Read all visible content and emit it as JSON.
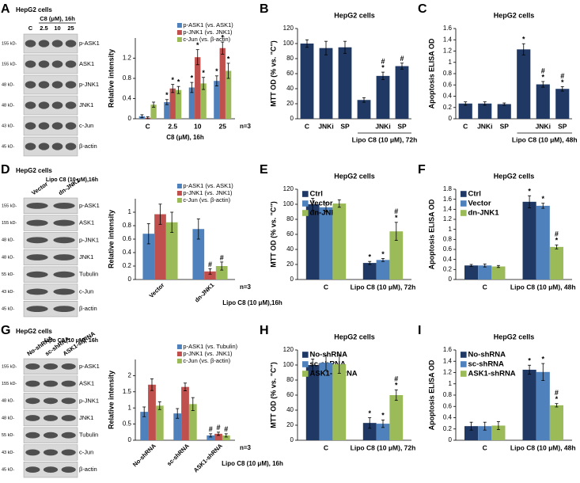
{
  "chart_data": [
    {
      "type": "bar",
      "ylabel": "Relative intensity",
      "xlabel": "C8 (μM), 16h",
      "note": "n=3",
      "categories": [
        "C",
        "2.5",
        "10",
        "25"
      ],
      "series": [
        {
          "name": "p-ASK1 (vs. ASK1)",
          "color": "#4f81bd",
          "values": [
            0.05,
            0.33,
            0.62,
            0.75
          ],
          "errors": [
            0.03,
            0.05,
            0.1,
            0.1
          ],
          "marks": [
            null,
            [
              "*"
            ],
            [
              "*"
            ],
            [
              "*"
            ]
          ]
        },
        {
          "name": "p-JNK1 (vs. JNK1)",
          "color": "#c0504d",
          "values": [
            0.02,
            0.6,
            1.22,
            1.4
          ],
          "errors": [
            0.02,
            0.08,
            0.15,
            0.12
          ],
          "marks": [
            null,
            [
              "*"
            ],
            [
              "*"
            ],
            [
              "*"
            ]
          ]
        },
        {
          "name": "c-Jun (vs. β-actin)",
          "color": "#9bbb59",
          "values": [
            0.28,
            0.57,
            0.7,
            0.95
          ],
          "errors": [
            0.05,
            0.07,
            0.12,
            0.15
          ],
          "marks": [
            null,
            [
              "*"
            ],
            [
              "*"
            ],
            [
              "*"
            ]
          ]
        }
      ],
      "ylim": [
        0,
        1.6
      ],
      "yticks": [
        0,
        0.4,
        0.8,
        1.2
      ]
    },
    {
      "type": "bar",
      "panel": "B",
      "title": "HepG2 cells",
      "ylabel": "MTT OD (% vs. \"C\")",
      "xlabel": "Lipo C8 (10 μM), 72h",
      "categories": [
        "C",
        "JNKi",
        "SP",
        null,
        "JNKi",
        "SP"
      ],
      "series": [
        {
          "color": "#1f3864",
          "values": [
            100,
            94,
            95,
            25,
            57,
            70
          ],
          "errors": [
            5,
            9,
            8,
            3,
            5,
            4
          ],
          "marks": [
            null,
            null,
            null,
            null,
            [
              "#",
              "*"
            ],
            [
              "#"
            ]
          ]
        }
      ],
      "ylim": [
        0,
        120
      ],
      "yticks": [
        0,
        20,
        40,
        60,
        80,
        100,
        120
      ]
    },
    {
      "type": "bar",
      "panel": "C",
      "title": "HepG2 cells",
      "ylabel": "Apoptosis ELISA OD",
      "xlabel": "Lipo C8 (10 μM), 48h",
      "categories": [
        "C",
        "JNKi",
        "SP",
        null,
        "JNKi",
        "SP"
      ],
      "series": [
        {
          "color": "#1f3864",
          "values": [
            0.27,
            0.27,
            0.26,
            1.23,
            0.61,
            0.53
          ],
          "errors": [
            0.03,
            0.03,
            0.02,
            0.1,
            0.05,
            0.04
          ],
          "marks": [
            null,
            null,
            null,
            [
              "*"
            ],
            [
              "#",
              "*"
            ],
            [
              "#",
              "*"
            ]
          ]
        }
      ],
      "ylim": [
        0,
        1.6
      ],
      "yticks": [
        0,
        0.2,
        0.4,
        0.6,
        0.8,
        1,
        1.2,
        1.4,
        1.6
      ]
    },
    {
      "type": "bar",
      "ylabel": "Relative intensity",
      "xlabel": "Lipo C8 (10 μM),16h",
      "note": "n=3",
      "xtick_rotation": 45,
      "categories": [
        "Vector",
        "dn-JNK1"
      ],
      "series": [
        {
          "name": "p-ASK1 (vs. ASK1)",
          "color": "#4f81bd",
          "values": [
            0.68,
            0.75
          ],
          "errors": [
            0.15,
            0.15
          ],
          "marks": [
            null,
            null
          ]
        },
        {
          "name": "p-JNK1 (vs. JNK1)",
          "color": "#c0504d",
          "values": [
            0.97,
            0.12
          ],
          "errors": [
            0.15,
            0.04
          ],
          "marks": [
            null,
            [
              "#"
            ]
          ]
        },
        {
          "name": "c-Jun (vs. β-actin)",
          "color": "#9bbb59",
          "values": [
            0.85,
            0.2
          ],
          "errors": [
            0.15,
            0.06
          ],
          "marks": [
            null,
            [
              "#"
            ]
          ]
        }
      ],
      "ylim": [
        0,
        1.2
      ],
      "yticks": [
        0,
        0.2,
        0.4,
        0.6,
        0.8,
        1.0
      ]
    },
    {
      "type": "bar",
      "panel": "E",
      "title": "HepG2 cells",
      "ylabel": "MTT OD (% vs. \"C\")",
      "categories": [
        "C",
        "Lipo C8 (10 μM), 72h"
      ],
      "series": [
        {
          "name": "Ctrl",
          "color": "#1f3864",
          "values": [
            100,
            22
          ],
          "errors": [
            8,
            2
          ],
          "marks": [
            null,
            [
              "*"
            ]
          ]
        },
        {
          "name": "Vector",
          "color": "#4f81bd",
          "values": [
            96,
            26
          ],
          "errors": [
            6,
            2
          ],
          "marks": [
            null,
            [
              "*"
            ]
          ]
        },
        {
          "name": "dn-JNK1",
          "color": "#9bbb59",
          "values": [
            101,
            64
          ],
          "errors": [
            5,
            12
          ],
          "marks": [
            null,
            [
              "#",
              "*"
            ]
          ]
        }
      ],
      "ylim": [
        0,
        120
      ],
      "yticks": [
        0,
        20,
        40,
        60,
        80,
        100,
        120
      ]
    },
    {
      "type": "bar",
      "panel": "F",
      "title": "HepG2 cells",
      "ylabel": "Apoptosis ELISA OD",
      "categories": [
        "C",
        "Lipo C8 (10 μM), 48h"
      ],
      "series": [
        {
          "name": "Ctrl",
          "color": "#1f3864",
          "values": [
            0.28,
            1.55
          ],
          "errors": [
            0.02,
            0.12
          ],
          "marks": [
            null,
            [
              "*"
            ]
          ]
        },
        {
          "name": "Vector",
          "color": "#4f81bd",
          "values": [
            0.28,
            1.47
          ],
          "errors": [
            0.03,
            0.05
          ],
          "marks": [
            null,
            [
              "*"
            ]
          ]
        },
        {
          "name": "dn-JNK1",
          "color": "#9bbb59",
          "values": [
            0.26,
            0.65
          ],
          "errors": [
            0.02,
            0.04
          ],
          "marks": [
            null,
            [
              "#",
              "*"
            ]
          ]
        }
      ],
      "ylim": [
        0,
        1.8
      ],
      "yticks": [
        0,
        0.2,
        0.4,
        0.6,
        0.8,
        1,
        1.2,
        1.4,
        1.6,
        1.8
      ]
    },
    {
      "type": "bar",
      "ylabel": "Relative intensity",
      "xlabel": "Lipo C8 (10 μM), 16h",
      "note": "n=3",
      "xtick_rotation": 45,
      "categories": [
        "No-shRNA",
        "sc-shRNA",
        "ASK1-shRNA"
      ],
      "series": [
        {
          "name": "p-ASK1 (vs. Tubulin)",
          "color": "#4f81bd",
          "values": [
            0.88,
            0.83,
            0.15
          ],
          "errors": [
            0.15,
            0.15,
            0.05
          ],
          "marks": [
            null,
            null,
            [
              "#"
            ]
          ]
        },
        {
          "name": "p-JNK1 (vs. JNK1)",
          "color": "#c0504d",
          "values": [
            1.72,
            1.65,
            0.2
          ],
          "errors": [
            0.18,
            0.12,
            0.05
          ],
          "marks": [
            null,
            null,
            [
              "#"
            ]
          ]
        },
        {
          "name": "c-Jun (vs. β-actin)",
          "color": "#9bbb59",
          "values": [
            1.07,
            1.12,
            0.15
          ],
          "errors": [
            0.12,
            0.2,
            0.05
          ],
          "marks": [
            null,
            null,
            [
              "#"
            ]
          ]
        }
      ],
      "ylim": [
        0,
        2.5
      ],
      "yticks": [
        0,
        0.5,
        1,
        1.5,
        2
      ]
    },
    {
      "type": "bar",
      "panel": "H",
      "title": "HepG2 cells",
      "ylabel": "MTT OD (% vs. \"C\")",
      "categories": [
        "C",
        "Lipo C8 (10 μM), 72h"
      ],
      "series": [
        {
          "name": "No-shRNA",
          "color": "#1f3864",
          "values": [
            100,
            23
          ],
          "errors": [
            8,
            7
          ],
          "marks": [
            null,
            [
              "*"
            ]
          ]
        },
        {
          "name": "sc-shRNA",
          "color": "#4f81bd",
          "values": [
            103,
            22
          ],
          "errors": [
            10,
            5
          ],
          "marks": [
            null,
            [
              "*"
            ]
          ]
        },
        {
          "name": "ASK1-shRNA",
          "color": "#9bbb59",
          "values": [
            101,
            60
          ],
          "errors": [
            12,
            7
          ],
          "marks": [
            null,
            [
              "#",
              "*"
            ]
          ]
        }
      ],
      "ylim": [
        0,
        120
      ],
      "yticks": [
        0,
        20,
        40,
        60,
        80,
        100,
        120
      ]
    },
    {
      "type": "bar",
      "panel": "I",
      "title": "HepG2 cells",
      "ylabel": "Apoptosis ELISA OD",
      "categories": [
        "C",
        "Lipo C8 (10 μM), 48h"
      ],
      "series": [
        {
          "name": "No-shRNA",
          "color": "#1f3864",
          "values": [
            0.25,
            1.25
          ],
          "errors": [
            0.07,
            0.08
          ],
          "marks": [
            null,
            [
              "*"
            ]
          ]
        },
        {
          "name": "sc-shRNA",
          "color": "#4f81bd",
          "values": [
            0.25,
            1.21
          ],
          "errors": [
            0.07,
            0.15
          ],
          "marks": [
            null,
            [
              "*"
            ]
          ]
        },
        {
          "name": "ASK1-shRNA",
          "color": "#9bbb59",
          "values": [
            0.26,
            0.62
          ],
          "errors": [
            0.07,
            0.03
          ],
          "marks": [
            null,
            [
              "#",
              "*"
            ]
          ]
        }
      ],
      "ylim": [
        0,
        1.6
      ],
      "yticks": [
        0,
        0.2,
        0.4,
        0.6,
        0.8,
        1,
        1.2,
        1.4,
        1.6
      ]
    }
  ],
  "blots": [
    {
      "panel": "A",
      "header": "HepG2 cells",
      "treatment": "C8 (μM), 16h",
      "lanes": [
        "C",
        "2.5",
        "10",
        "25"
      ],
      "rows": [
        {
          "kd": "155 kD-",
          "name": "p-ASK1"
        },
        {
          "kd": "155 kD-",
          "name": "ASK1"
        },
        {
          "kd": "48 kD-",
          "name": "p-JNK1"
        },
        {
          "kd": "48 kD-",
          "name": "JNK1"
        },
        {
          "kd": "43 kD-",
          "name": "c-Jun"
        },
        {
          "kd": "45 kD-",
          "name": "β-actin"
        }
      ]
    },
    {
      "panel": "D",
      "header": "HepG2 cells",
      "treatment": "Lipo C8 (10 μM),16h",
      "lanes": [
        "Vector",
        "dn-JNK1"
      ],
      "rows": [
        {
          "kd": "155 kD-",
          "name": "p-ASK1"
        },
        {
          "kd": "155 kD-",
          "name": "ASK1"
        },
        {
          "kd": "48 kD-",
          "name": "p-JNK1"
        },
        {
          "kd": "48 kD-",
          "name": "JNK1"
        },
        {
          "kd": "55 kD-",
          "name": "Tubulin"
        },
        {
          "kd": "43 kD-",
          "name": "c-Jun"
        },
        {
          "kd": "45 kD-",
          "name": "β-actin"
        }
      ]
    },
    {
      "panel": "G",
      "header": "HepG2 cells",
      "treatment": "Lipo C8 (10 μM), 16h",
      "lanes": [
        "No-shRNA",
        "sc-shRNA",
        "ASK1-shRNA"
      ],
      "rows": [
        {
          "kd": "155 kD-",
          "name": "p-ASK1"
        },
        {
          "kd": "155 kD-",
          "name": "ASK1"
        },
        {
          "kd": "48 kD-",
          "name": "p-JNK1"
        },
        {
          "kd": "48 kD-",
          "name": "JNK1"
        },
        {
          "kd": "55 kD-",
          "name": "Tubulin"
        },
        {
          "kd": "43 kD-",
          "name": "c-Jun"
        },
        {
          "kd": "45 kD-",
          "name": "β-actin"
        }
      ]
    }
  ]
}
